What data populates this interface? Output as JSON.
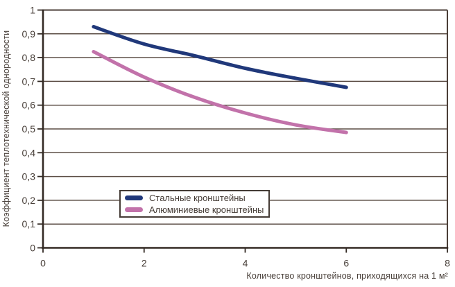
{
  "colors": {
    "steel": "#20387a",
    "aluminum": "#c272aa",
    "gridline": "#5b4d45",
    "plot_border": "#4a3e37",
    "axis": "#332a24",
    "text": "#473e38",
    "background": "#ffffff"
  },
  "chart_data": {
    "type": "line",
    "x": [
      1,
      2,
      3,
      4,
      5,
      6
    ],
    "series": [
      {
        "id": "steel",
        "name": "Стальные кронштейны",
        "color": "#20387a",
        "values": [
          0.93,
          0.857,
          0.808,
          0.755,
          0.713,
          0.675
        ]
      },
      {
        "id": "aluminum",
        "name": "Алюминиевые кронштейны",
        "color": "#c272aa",
        "values": [
          0.825,
          0.718,
          0.633,
          0.567,
          0.517,
          0.485
        ]
      }
    ],
    "title": "",
    "xlabel": "Количество кронштейнов, приходящихся на 1 м²",
    "ylabel": "Коэффициент теплотехнической однородности",
    "xlim": [
      0,
      8
    ],
    "ylim": [
      0,
      1
    ],
    "x_ticks": {
      "values": [
        0,
        2,
        4,
        6,
        8
      ],
      "labels": [
        "0",
        "2",
        "4",
        "6",
        "8"
      ]
    },
    "y_ticks": {
      "values": [
        0,
        0.1,
        0.2,
        0.3,
        0.4,
        0.5,
        0.6,
        0.7,
        0.8,
        0.9,
        1
      ],
      "labels": [
        "0",
        "0,1",
        "0,2",
        "0,3",
        "0,4",
        "0,5",
        "0,6",
        "0,7",
        "0,8",
        "0,9",
        "1"
      ]
    },
    "grid": "horizontal",
    "legend_position": "inside-bottom-center"
  }
}
